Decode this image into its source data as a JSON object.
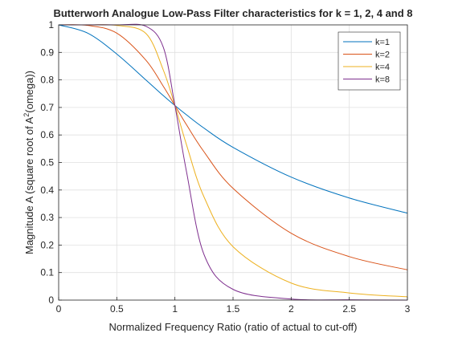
{
  "chart_data": {
    "type": "line",
    "title": "Butterworh Analogue Low-Pass Filter characteristics for k = 1, 2, 4 and 8",
    "xlabel": "Normalized Frequency Ratio (ratio of actual to cut-off)",
    "ylabel_main": "Magnitude A (square root of A",
    "ylabel_sup": "2",
    "ylabel_tail": "(omega))",
    "xlim": [
      0,
      3
    ],
    "ylim": [
      0,
      1
    ],
    "xticks": [
      "0",
      "0.5",
      "1",
      "1.5",
      "2",
      "2.5",
      "3"
    ],
    "yticks": [
      "0",
      "0.1",
      "0.2",
      "0.3",
      "0.4",
      "0.5",
      "0.6",
      "0.7",
      "0.8",
      "0.9",
      "1"
    ],
    "grid": true,
    "legend_position": "top-right",
    "x": [
      0,
      0.25,
      0.5,
      0.75,
      0.9,
      1.0,
      1.1,
      1.25,
      1.5,
      2.0,
      2.5,
      3.0
    ],
    "series": [
      {
        "name": "k=1",
        "color": "#0072BD",
        "values": [
          1.0,
          0.97,
          0.894,
          0.8,
          0.743,
          0.707,
          0.673,
          0.625,
          0.555,
          0.447,
          0.371,
          0.316
        ]
      },
      {
        "name": "k=2",
        "color": "#D95319",
        "values": [
          1.0,
          0.998,
          0.97,
          0.872,
          0.777,
          0.707,
          0.637,
          0.539,
          0.406,
          0.243,
          0.158,
          0.11
        ]
      },
      {
        "name": "k=4",
        "color": "#EDB120",
        "values": [
          1.0,
          1.0,
          0.998,
          0.969,
          0.836,
          0.707,
          0.564,
          0.375,
          0.194,
          0.062,
          0.026,
          0.012
        ]
      },
      {
        "name": "k=8",
        "color": "#7E2F8E",
        "values": [
          1.0,
          1.0,
          1.0,
          0.995,
          0.919,
          0.707,
          0.466,
          0.166,
          0.039,
          0.004,
          0.001,
          0.0
        ]
      }
    ]
  }
}
